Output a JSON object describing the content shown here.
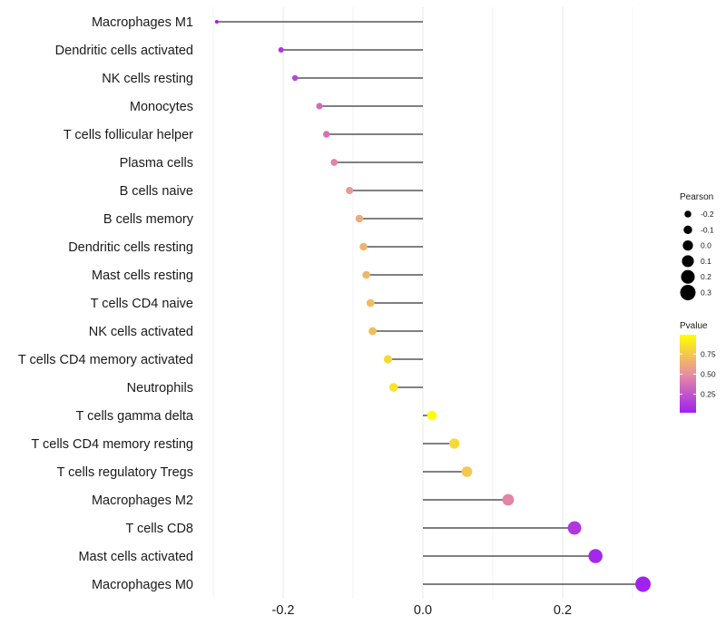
{
  "chart_data": {
    "type": "lollipop",
    "title": "",
    "xlabel": "",
    "ylabel": "",
    "xlim": [
      -0.3,
      0.32
    ],
    "x_ticks": [
      -0.2,
      0.0,
      0.2
    ],
    "x_tick_labels": [
      "-0.2",
      "0.0",
      "0.2"
    ],
    "grid": true,
    "categories": [
      "Macrophages M1",
      "Dendritic cells activated",
      "NK cells resting",
      "Monocytes",
      "T cells follicular helper",
      "Plasma cells",
      "B cells naive",
      "B cells memory",
      "Dendritic cells resting",
      "Mast cells resting",
      "T cells CD4 naive",
      "NK cells activated",
      "T cells CD4 memory activated",
      "Neutrophils",
      "T cells gamma delta",
      "T cells CD4 memory resting",
      "T cells regulatory  Tregs ",
      "Macrophages M2",
      "T cells CD8",
      "Mast cells activated",
      "Macrophages M0"
    ],
    "pearson": [
      -0.295,
      -0.203,
      -0.183,
      -0.148,
      -0.138,
      -0.127,
      -0.105,
      -0.091,
      -0.085,
      -0.081,
      -0.075,
      -0.072,
      -0.05,
      -0.042,
      0.013,
      0.045,
      0.063,
      0.122,
      0.217,
      0.247,
      0.315
    ],
    "pvalue": [
      0.02,
      0.12,
      0.18,
      0.35,
      0.38,
      0.45,
      0.55,
      0.62,
      0.66,
      0.68,
      0.7,
      0.71,
      0.82,
      0.87,
      0.99,
      0.83,
      0.75,
      0.46,
      0.12,
      0.05,
      0.03
    ],
    "size_legend": {
      "title": "Pearson",
      "values": [
        -0.2,
        -0.1,
        0.0,
        0.1,
        0.2,
        0.3
      ],
      "labels": [
        "-0.2",
        "-0.1",
        "0.0",
        "0.1",
        "0.2",
        "0.3"
      ]
    },
    "color_legend": {
      "title": "Pvalue",
      "breaks": [
        0.75,
        0.5,
        0.25
      ],
      "labels": [
        "0.75",
        "0.50",
        "0.25"
      ],
      "range": [
        0.02,
        0.99
      ],
      "low_color": "#a020f0",
      "mid_color": "#e88fa0",
      "high_color": "#ffff00"
    },
    "line_color": "#000000",
    "grid_color": "#ebebeb"
  }
}
